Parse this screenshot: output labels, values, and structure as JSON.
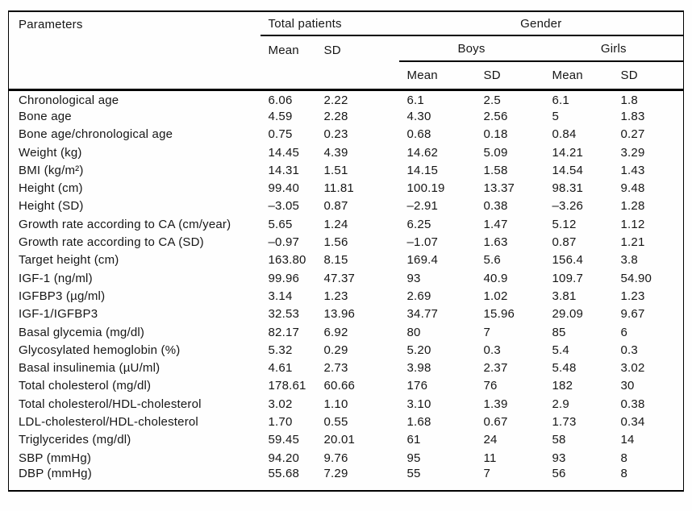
{
  "colors": {
    "ink": "#161616",
    "rule": "#000000",
    "background": "#fefefe"
  },
  "table": {
    "header": {
      "parameters": "Parameters",
      "total_patients": "Total patients",
      "gender": "Gender",
      "boys": "Boys",
      "girls": "Girls",
      "mean": "Mean",
      "sd": "SD"
    },
    "rows": [
      {
        "label": "Chronological age",
        "values": [
          "6.06",
          "2.22",
          "6.1",
          "2.5",
          "6.1",
          "1.8"
        ]
      },
      {
        "label": "Bone age",
        "values": [
          "4.59",
          "2.28",
          "4.30",
          "2.56",
          "5",
          "1.83"
        ]
      },
      {
        "label": "Bone age/chronological age",
        "values": [
          "0.75",
          "0.23",
          "0.68",
          "0.18",
          "0.84",
          "0.27"
        ]
      },
      {
        "label": "Weight (kg)",
        "values": [
          "14.45",
          "4.39",
          "14.62",
          "5.09",
          "14.21",
          "3.29"
        ]
      },
      {
        "label": "BMI (kg/m²)",
        "values": [
          "14.31",
          "1.51",
          "14.15",
          "1.58",
          "14.54",
          "1.43"
        ]
      },
      {
        "label": "Height (cm)",
        "values": [
          "99.40",
          "11.81",
          "100.19",
          "13.37",
          "98.31",
          "9.48"
        ]
      },
      {
        "label": "Height (SD)",
        "values": [
          "–3.05",
          "0.87",
          "–2.91",
          "0.38",
          "–3.26",
          "1.28"
        ]
      },
      {
        "label": "Growth rate according to CA (cm/year)",
        "values": [
          "5.65",
          "1.24",
          "6.25",
          "1.47",
          "5.12",
          "1.12"
        ]
      },
      {
        "label": "Growth rate according to CA (SD)",
        "values": [
          "–0.97",
          "1.56",
          "–1.07",
          "1.63",
          "0.87",
          "1.21"
        ]
      },
      {
        "label": "Target height (cm)",
        "values": [
          "163.80",
          "8.15",
          "169.4",
          "5.6",
          "156.4",
          "3.8"
        ]
      },
      {
        "label": "IGF-1 (ng/ml)",
        "values": [
          "99.96",
          "47.37",
          "93",
          "40.9",
          "109.7",
          "54.90"
        ]
      },
      {
        "label": "IGFBP3 (µg/ml)",
        "values": [
          "3.14",
          "1.23",
          "2.69",
          "1.02",
          "3.81",
          "1.23"
        ]
      },
      {
        "label": "IGF-1/IGFBP3",
        "values": [
          "32.53",
          "13.96",
          "34.77",
          "15.96",
          "29.09",
          "9.67"
        ]
      },
      {
        "label": "Basal glycemia (mg/dl)",
        "values": [
          "82.17",
          "6.92",
          "80",
          "7",
          "85",
          "6"
        ]
      },
      {
        "label": "Glycosylated hemoglobin (%)",
        "values": [
          "5.32",
          "0.29",
          "5.20",
          "0.3",
          "5.4",
          "0.3"
        ]
      },
      {
        "label": "Basal insulinemia (µU/ml)",
        "values": [
          "4.61",
          "2.73",
          "3.98",
          "2.37",
          "5.48",
          "3.02"
        ]
      },
      {
        "label": "Total cholesterol (mg/dl)",
        "values": [
          "178.61",
          "60.66",
          "176",
          "76",
          "182",
          "30"
        ]
      },
      {
        "label": "Total cholesterol/HDL-cholesterol",
        "values": [
          "3.02",
          "1.10",
          "3.10",
          "1.39",
          "2.9",
          "0.38"
        ]
      },
      {
        "label": "LDL-cholesterol/HDL-cholesterol",
        "values": [
          "1.70",
          "0.55",
          "1.68",
          "0.67",
          "1.73",
          "0.34"
        ]
      },
      {
        "label": "Triglycerides (mg/dl)",
        "values": [
          "59.45",
          "20.01",
          "61",
          "24",
          "58",
          "14"
        ]
      },
      {
        "label": "SBP (mmHg)",
        "values": [
          "94.20",
          "9.76",
          "95",
          "11",
          "93",
          "8"
        ]
      },
      {
        "label": "DBP (mmHg)",
        "values": [
          "55.68",
          "7.29",
          "55",
          "7",
          "56",
          "8"
        ]
      }
    ]
  }
}
